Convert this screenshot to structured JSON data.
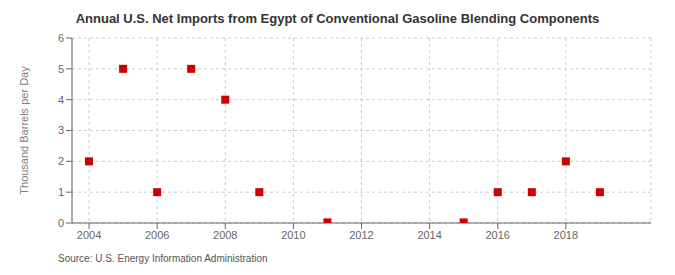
{
  "chart_data": {
    "type": "scatter",
    "title": "Annual U.S. Net Imports from Egypt of Conventional Gasoline Blending Components",
    "ylabel": "Thousand Barrels per Day",
    "source": "Source: U.S. Energy Information Administration",
    "x": [
      2004,
      2005,
      2006,
      2007,
      2008,
      2009,
      2011,
      2015,
      2016,
      2017,
      2018,
      2019
    ],
    "values": [
      2,
      5,
      1,
      5,
      4,
      1,
      0.02,
      0.02,
      1,
      1,
      2,
      1
    ],
    "color": "#cc0000",
    "marker": "square",
    "xlim": [
      2003.5,
      2020.5
    ],
    "ylim": [
      0,
      6
    ],
    "xticks": [
      2004,
      2006,
      2008,
      2010,
      2012,
      2014,
      2016,
      2018
    ],
    "yticks": [
      0,
      1,
      2,
      3,
      4,
      5,
      6
    ],
    "grid": true
  }
}
